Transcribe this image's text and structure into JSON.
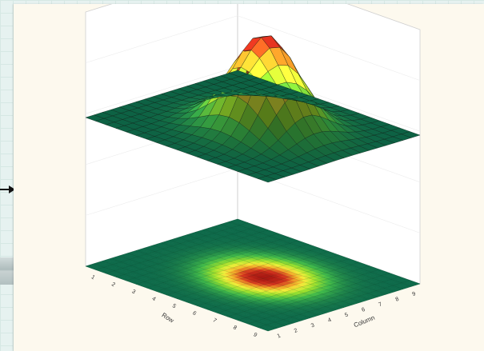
{
  "chart_data": {
    "type": "surface",
    "surface_function": "bivariate gaussian peak",
    "grid": {
      "x_steps": 18,
      "y_steps": 18
    },
    "x": {
      "label": "Column",
      "ticks": [
        "1",
        "2",
        "3",
        "4",
        "5",
        "6",
        "7",
        "8",
        "9"
      ]
    },
    "y": {
      "label": "Row",
      "ticks": [
        "1",
        "2",
        "3",
        "4",
        "5",
        "6",
        "7",
        "8",
        "9"
      ]
    },
    "z": {
      "peak": 1.0,
      "min": 0.0
    },
    "projection": "filled contour on floor",
    "colors": [
      "#0e6a4a",
      "#3fb84a",
      "#9be02e",
      "#f2ee3a",
      "#f0a028",
      "#d2331e",
      "#a81812"
    ]
  }
}
